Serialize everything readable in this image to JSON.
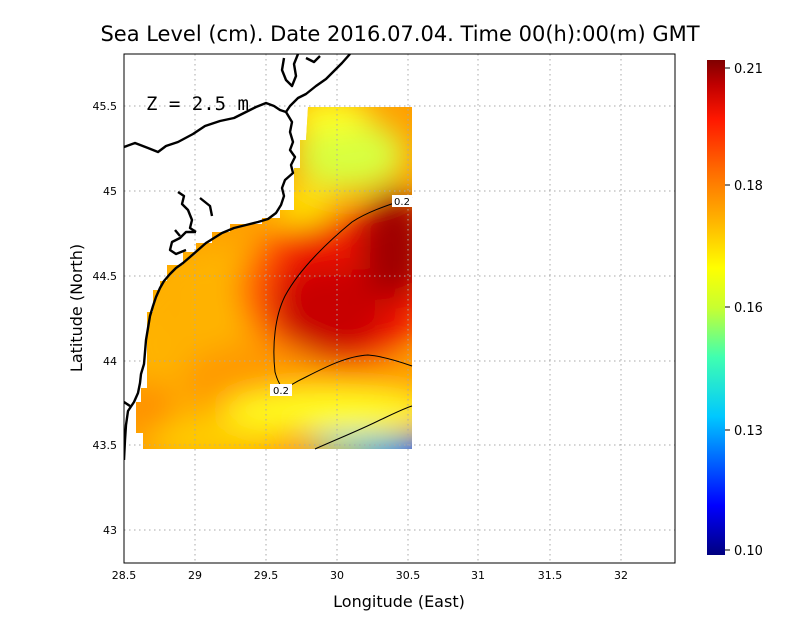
{
  "title": "Sea Level (cm). Date 2016.07.04. Time 00(h):00(m) GMT",
  "annotation": "Z = 2.5 m",
  "chart_data": {
    "type": "heatmap",
    "xlabel": "Longitude (East)",
    "ylabel": "Latitude (North)",
    "xlim": [
      28.5,
      32.4
    ],
    "ylim": [
      42.8,
      45.8
    ],
    "x_ticks": [
      "28.5",
      "29",
      "29.5",
      "30",
      "30.5",
      "31",
      "31.5",
      "32"
    ],
    "y_ticks": [
      "43",
      "43.5",
      "44",
      "44.5",
      "45",
      "45.5"
    ],
    "grid": true,
    "colorbar": {
      "min": 0.1,
      "max": 0.21,
      "ticks": [
        "0.21",
        "0.18",
        "0.16",
        "0.13",
        "0.10"
      ],
      "colors": [
        "#00007f",
        "#0000ff",
        "#00c0ff",
        "#40ffb0",
        "#c0ff40",
        "#ffff00",
        "#ffb000",
        "#ff7000",
        "#ff2000",
        "#c00000",
        "#800000"
      ]
    },
    "contour_labels": [
      "0.2",
      "0.2"
    ],
    "field_samples": [
      {
        "lon": 29.9,
        "lat": 45.4,
        "value": 0.172
      },
      {
        "lon": 30.3,
        "lat": 45.2,
        "value": 0.165
      },
      {
        "lon": 30.4,
        "lat": 44.6,
        "value": 0.208
      },
      {
        "lon": 30.1,
        "lat": 44.1,
        "value": 0.207
      },
      {
        "lon": 29.2,
        "lat": 44.3,
        "value": 0.188
      },
      {
        "lon": 28.8,
        "lat": 44.0,
        "value": 0.176
      },
      {
        "lon": 30.4,
        "lat": 43.5,
        "value": 0.12
      }
    ]
  }
}
